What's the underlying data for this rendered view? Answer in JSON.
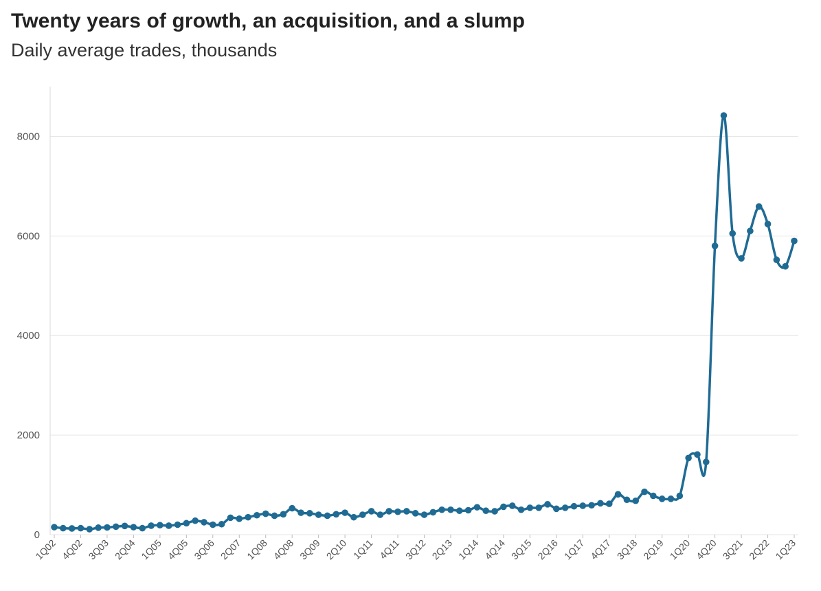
{
  "chart_data": {
    "type": "line",
    "title": "Twenty years of growth, an acquisition, and a slump",
    "subtitle": "Daily average trades, thousands",
    "xlabel": "",
    "ylabel": "",
    "ylim": [
      0,
      9000
    ],
    "yticks": [
      0,
      2000,
      4000,
      6000,
      8000
    ],
    "grid": "horizontal",
    "line_color": "#1f6b94",
    "categories": [
      "1Q02",
      "2Q02",
      "3Q02",
      "4Q02",
      "1Q03",
      "2Q03",
      "3Q03",
      "4Q03",
      "1Q04",
      "2Q04",
      "3Q04",
      "4Q04",
      "1Q05",
      "2Q05",
      "3Q05",
      "4Q05",
      "1Q06",
      "2Q06",
      "3Q06",
      "4Q06",
      "1Q07",
      "2Q07",
      "3Q07",
      "4Q07",
      "1Q08",
      "2Q08",
      "3Q08",
      "4Q08",
      "1Q09",
      "2Q09",
      "3Q09",
      "4Q09",
      "1Q10",
      "2Q10",
      "3Q10",
      "4Q10",
      "1Q11",
      "2Q11",
      "3Q11",
      "4Q11",
      "1Q12",
      "2Q12",
      "3Q12",
      "4Q12",
      "1Q13",
      "2Q13",
      "3Q13",
      "4Q13",
      "1Q14",
      "2Q14",
      "3Q14",
      "4Q14",
      "1Q15",
      "2Q15",
      "3Q15",
      "4Q15",
      "1Q16",
      "2Q16",
      "3Q16",
      "4Q16",
      "1Q17",
      "2Q17",
      "3Q17",
      "4Q17",
      "1Q18",
      "2Q18",
      "3Q18",
      "4Q18",
      "1Q19",
      "2Q19",
      "3Q19",
      "4Q19",
      "1Q20",
      "2Q20",
      "3Q20",
      "4Q20",
      "1Q21",
      "2Q21",
      "3Q21",
      "4Q21",
      "1Q22",
      "2Q22",
      "3Q22",
      "4Q22",
      "1Q23"
    ],
    "labeled_ticks": [
      "1Q02",
      "4Q02",
      "3Q03",
      "2Q04",
      "1Q05",
      "4Q05",
      "3Q06",
      "2Q07",
      "1Q08",
      "4Q08",
      "3Q09",
      "2Q10",
      "1Q11",
      "4Q11",
      "3Q12",
      "2Q13",
      "1Q14",
      "4Q14",
      "3Q15",
      "2Q16",
      "1Q17",
      "4Q17",
      "3Q18",
      "2Q19",
      "1Q20",
      "4Q20",
      "3Q21",
      "2Q22",
      "1Q23"
    ],
    "series": [
      {
        "values": [
          150,
          130,
          125,
          130,
          110,
          140,
          145,
          160,
          175,
          150,
          130,
          180,
          190,
          180,
          200,
          230,
          280,
          250,
          200,
          210,
          340,
          320,
          350,
          390,
          420,
          380,
          410,
          530,
          440,
          430,
          400,
          380,
          410,
          440,
          350,
          400,
          470,
          400,
          470,
          460,
          470,
          430,
          400,
          450,
          500,
          500,
          480,
          490,
          550,
          480,
          470,
          560,
          580,
          500,
          540,
          540,
          610,
          520,
          540,
          570,
          580,
          590,
          630,
          620,
          810,
          700,
          680,
          860,
          780,
          720,
          720,
          780,
          1540,
          1610,
          1460,
          5800,
          8420,
          6050,
          5550,
          6100,
          6590,
          6240,
          5520,
          5390,
          5900
        ]
      }
    ]
  }
}
